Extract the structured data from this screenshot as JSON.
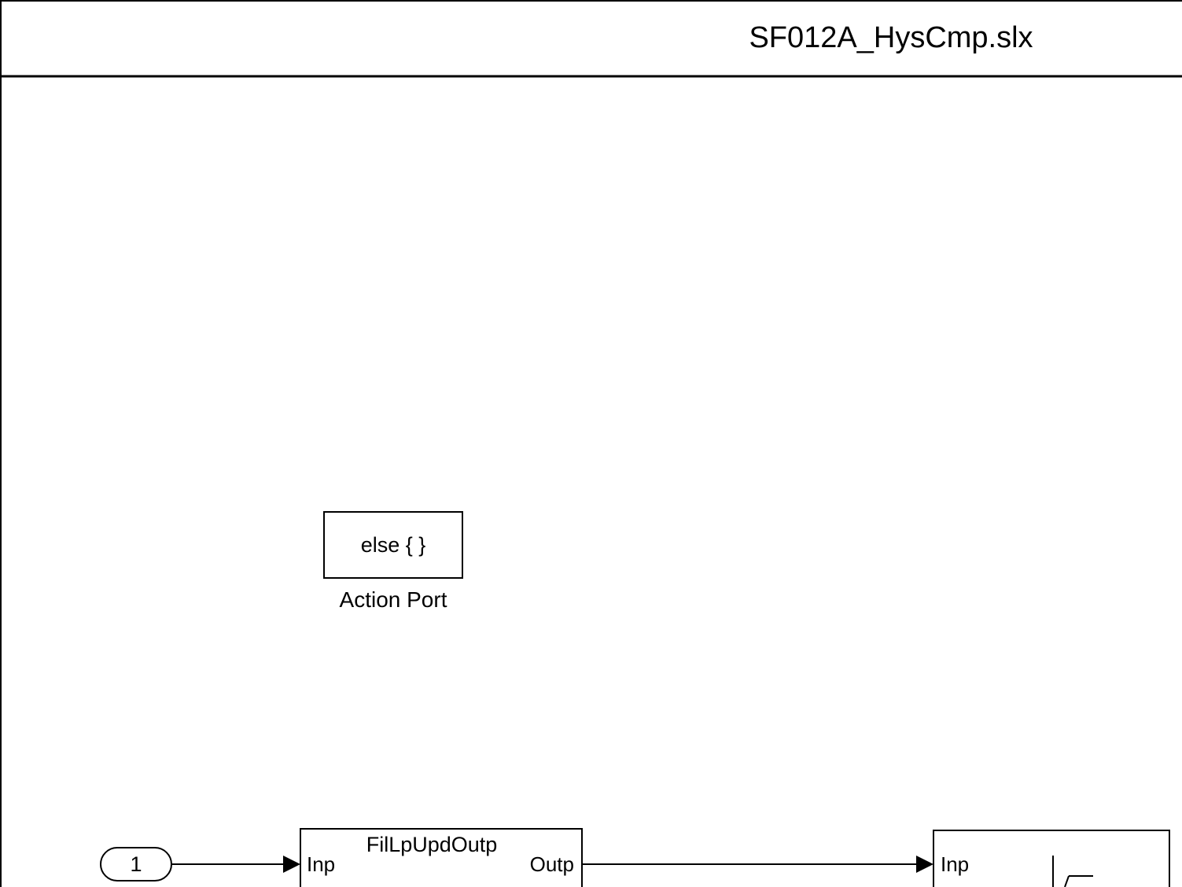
{
  "header": {
    "title": "SF012A_HysCmp.slx"
  },
  "action_port_block": {
    "text": "else { }",
    "label": "Action Port"
  },
  "inport_block": {
    "number": "1"
  },
  "filter_block": {
    "name": "FilLpUpdOutp",
    "input_port": "Inp",
    "output_port": "Outp"
  },
  "hysteresis_block": {
    "input_port": "Inp",
    "icon": "hysteresis-relay-icon"
  }
}
